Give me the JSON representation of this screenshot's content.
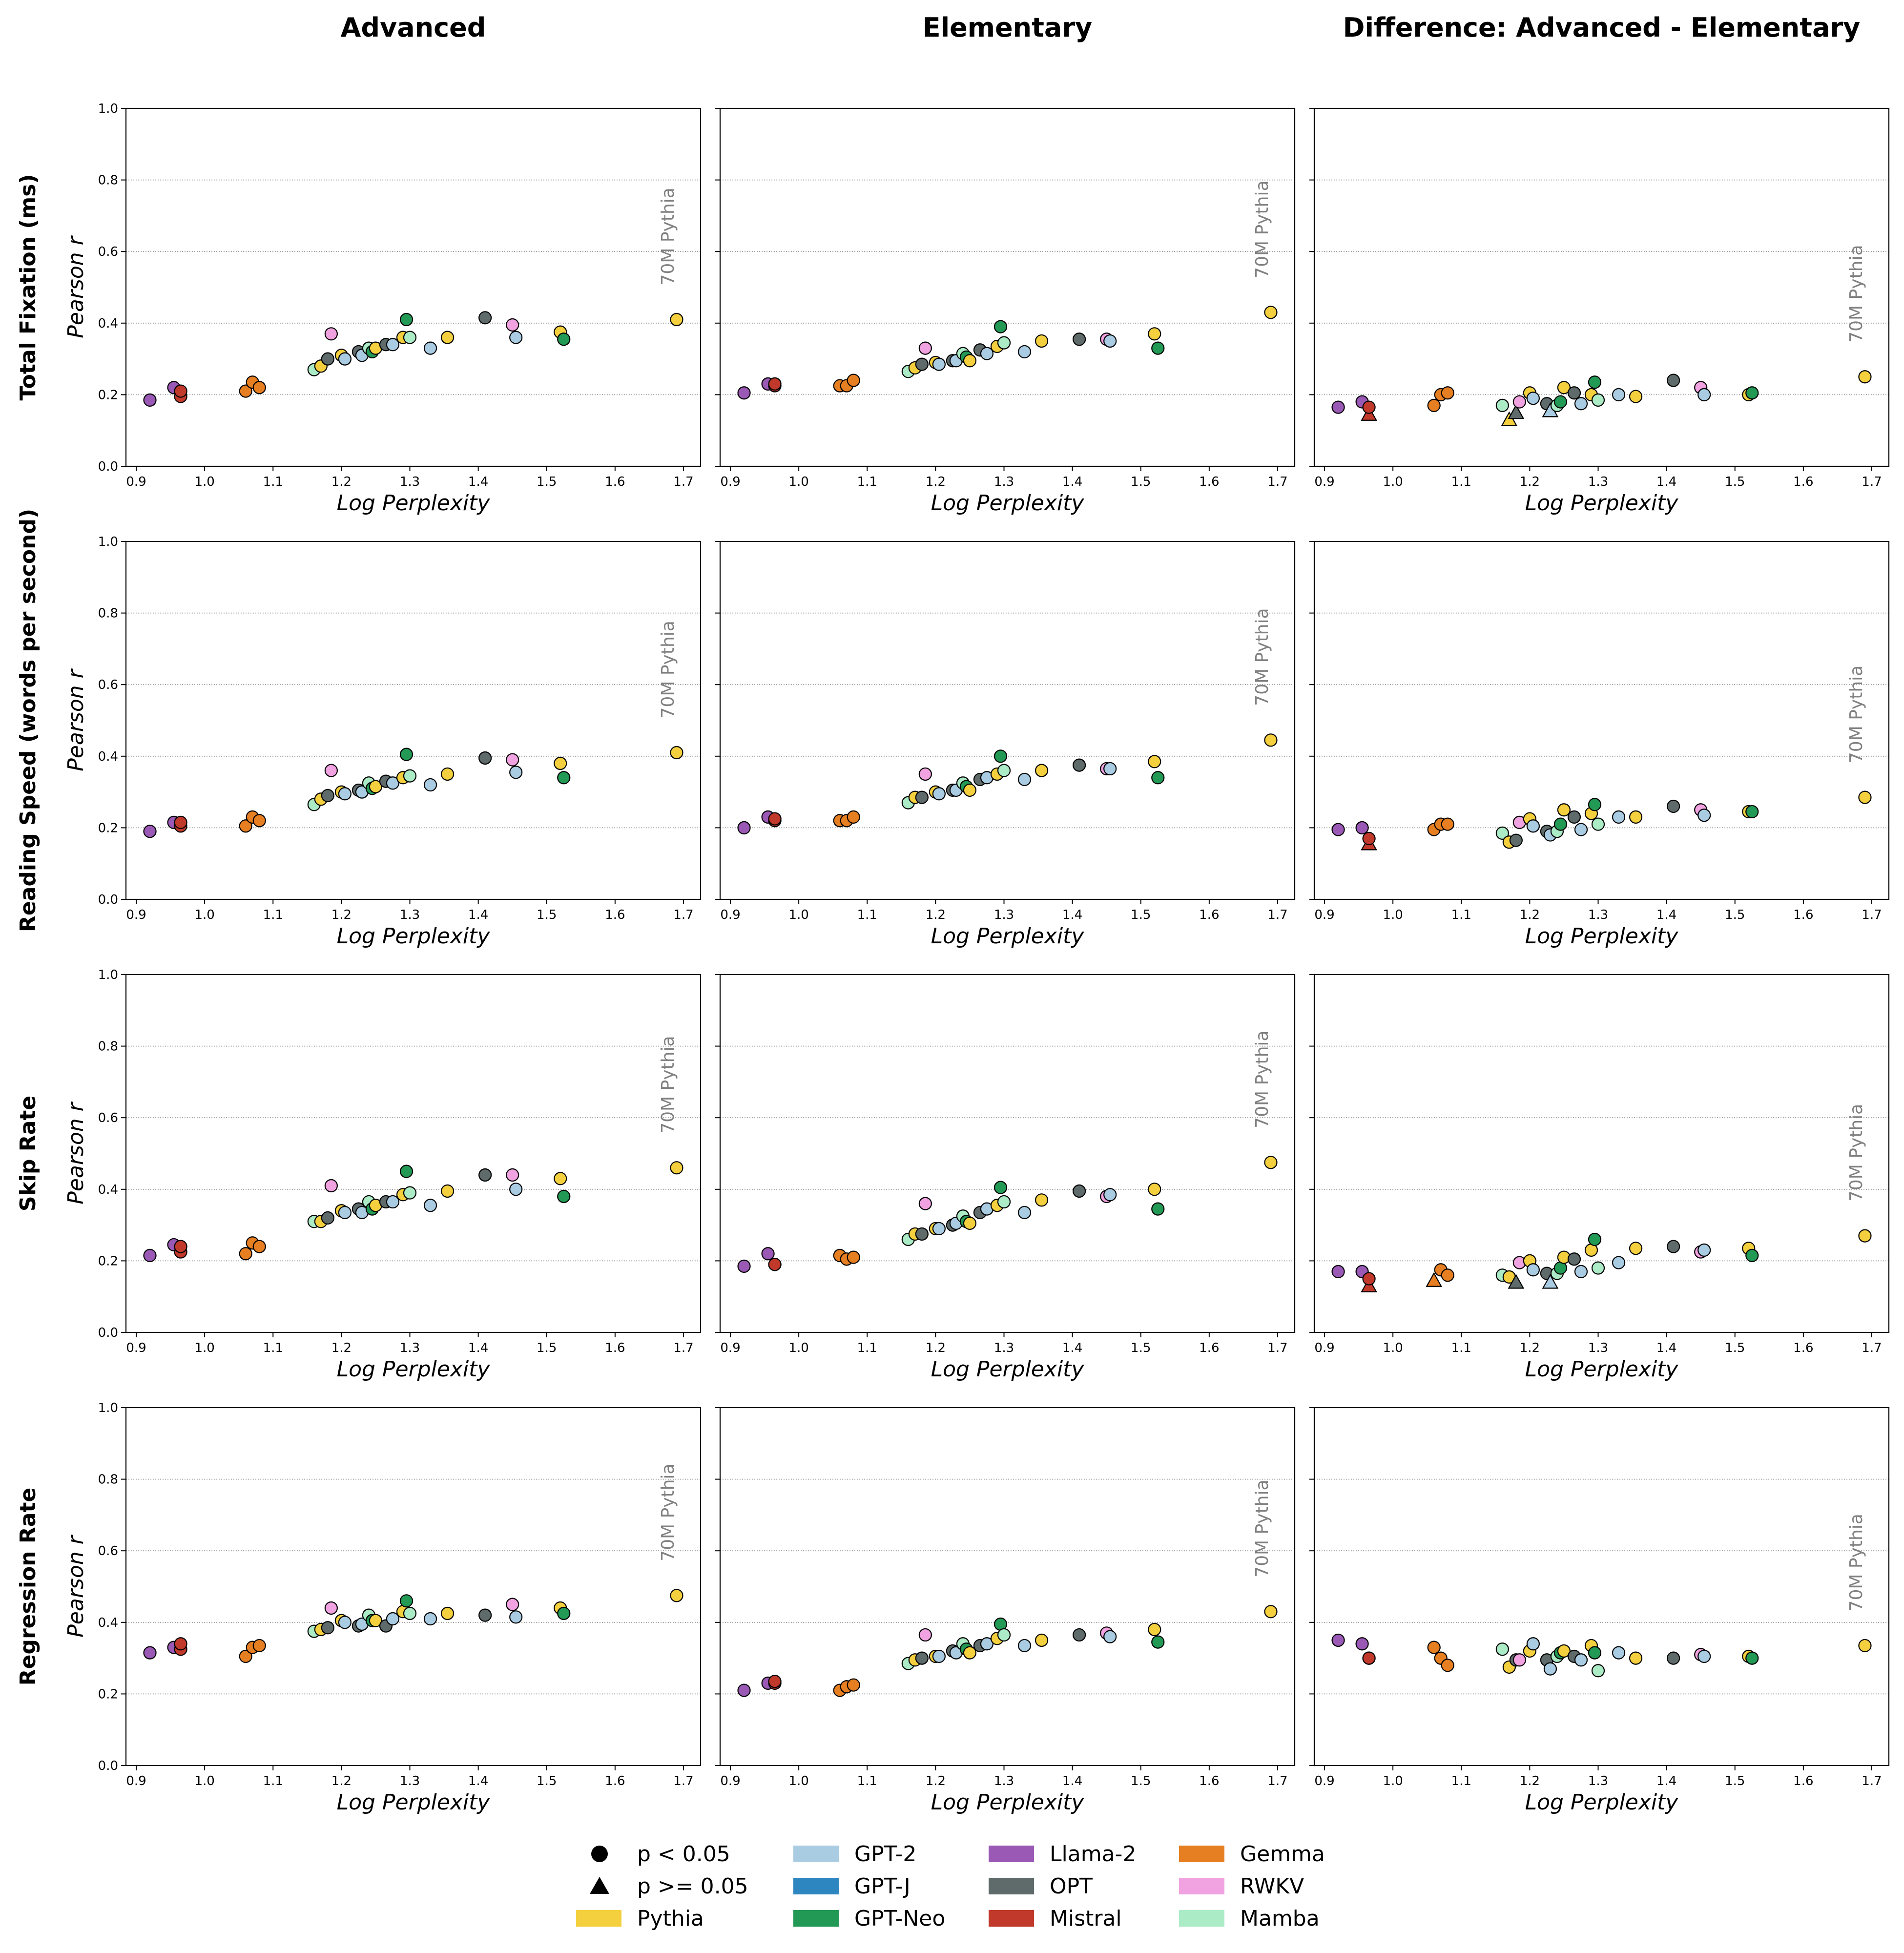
{
  "figure": {
    "column_titles": [
      "Advanced",
      "Elementary",
      "Difference: Advanced - Elementary"
    ],
    "row_titles": [
      "Total Fixation (ms)",
      "Reading Speed (words per second)",
      "Skip Rate",
      "Regression Rate"
    ],
    "xlabel": "Log Perplexity",
    "ylabel": "Pearson r",
    "annotation": "70M Pythia",
    "xticks": [
      "0.9",
      "1.0",
      "1.1",
      "1.2",
      "1.3",
      "1.4",
      "1.5",
      "1.6",
      "1.7"
    ],
    "yticks": [
      "0.0",
      "0.2",
      "0.4",
      "0.6",
      "0.8",
      "1.0"
    ]
  },
  "legend": {
    "markers": [
      {
        "label": "p < 0.05",
        "shape": "circle"
      },
      {
        "label": "p >= 0.05",
        "shape": "triangle"
      }
    ],
    "families": [
      {
        "label": "Pythia",
        "color": "#f4d03f"
      },
      {
        "label": "GPT-2",
        "color": "#a9cce3"
      },
      {
        "label": "GPT-J",
        "color": "#2e86c1"
      },
      {
        "label": "GPT-Neo",
        "color": "#229954"
      },
      {
        "label": "Llama-2",
        "color": "#9b59b6"
      },
      {
        "label": "OPT",
        "color": "#5f6a6a"
      },
      {
        "label": "Mistral",
        "color": "#c0392b"
      },
      {
        "label": "Gemma",
        "color": "#e67e22"
      },
      {
        "label": "RWKV",
        "color": "#f1a2e0"
      },
      {
        "label": "Mamba",
        "color": "#abebc6"
      }
    ]
  },
  "chart_data": {
    "type": "scatter",
    "xlim": [
      0.885,
      1.725
    ],
    "ylim": [
      0.0,
      1.0
    ],
    "grid": "horizontal dotted",
    "legend_placement": "bottom",
    "x": [
      0.92,
      0.955,
      0.965,
      0.965,
      1.06,
      1.07,
      1.08,
      1.16,
      1.17,
      1.18,
      1.185,
      1.2,
      1.205,
      1.225,
      1.23,
      1.24,
      1.245,
      1.25,
      1.265,
      1.275,
      1.29,
      1.295,
      1.3,
      1.33,
      1.355,
      1.41,
      1.45,
      1.455,
      1.52,
      1.525,
      1.69
    ],
    "families": [
      "Llama-2",
      "Llama-2",
      "Mistral",
      "Mistral",
      "Gemma",
      "Gemma",
      "Gemma",
      "Mamba",
      "Pythia",
      "OPT",
      "RWKV",
      "Pythia",
      "GPT-2",
      "OPT",
      "GPT-2",
      "Mamba",
      "GPT-Neo",
      "Pythia",
      "OPT",
      "GPT-2",
      "Pythia",
      "GPT-Neo",
      "Mamba",
      "GPT-2",
      "Pythia",
      "OPT",
      "RWKV",
      "GPT-2",
      "Pythia",
      "GPT-Neo",
      "Pythia"
    ],
    "panels": [
      {
        "row": "Total Fixation (ms)",
        "column": "Advanced",
        "y": [
          0.185,
          0.22,
          0.195,
          0.21,
          0.21,
          0.235,
          0.22,
          0.27,
          0.28,
          0.3,
          0.37,
          0.31,
          0.3,
          0.32,
          0.31,
          0.33,
          0.32,
          0.33,
          0.34,
          0.34,
          0.36,
          0.41,
          0.36,
          0.33,
          0.36,
          0.415,
          0.395,
          0.36,
          0.375,
          0.355,
          0.41
        ],
        "significant": [
          true,
          true,
          true,
          true,
          true,
          true,
          true,
          true,
          true,
          true,
          true,
          true,
          true,
          true,
          true,
          true,
          true,
          true,
          true,
          true,
          true,
          true,
          true,
          true,
          true,
          true,
          true,
          true,
          true,
          true,
          true
        ]
      },
      {
        "row": "Total Fixation (ms)",
        "column": "Elementary",
        "y": [
          0.205,
          0.23,
          0.225,
          0.23,
          0.225,
          0.225,
          0.24,
          0.265,
          0.275,
          0.285,
          0.33,
          0.29,
          0.285,
          0.295,
          0.295,
          0.315,
          0.305,
          0.295,
          0.325,
          0.315,
          0.335,
          0.39,
          0.345,
          0.32,
          0.35,
          0.355,
          0.355,
          0.35,
          0.37,
          0.33,
          0.43
        ],
        "significant": [
          true,
          true,
          true,
          true,
          true,
          true,
          true,
          true,
          true,
          true,
          true,
          true,
          true,
          true,
          true,
          true,
          true,
          true,
          true,
          true,
          true,
          true,
          true,
          true,
          true,
          true,
          true,
          true,
          true,
          true,
          true
        ]
      },
      {
        "row": "Total Fixation (ms)",
        "column": "Difference: Advanced - Elementary",
        "y": [
          0.165,
          0.18,
          0.145,
          0.165,
          0.17,
          0.2,
          0.205,
          0.17,
          0.13,
          0.15,
          0.18,
          0.205,
          0.19,
          0.175,
          0.155,
          0.17,
          0.18,
          0.22,
          0.205,
          0.175,
          0.2,
          0.235,
          0.185,
          0.2,
          0.195,
          0.24,
          0.22,
          0.2,
          0.2,
          0.205,
          0.25
        ],
        "significant": [
          true,
          true,
          false,
          true,
          true,
          true,
          true,
          true,
          false,
          false,
          true,
          true,
          true,
          true,
          false,
          true,
          true,
          true,
          true,
          true,
          true,
          true,
          true,
          true,
          true,
          true,
          true,
          true,
          true,
          true,
          true
        ]
      },
      {
        "row": "Reading Speed (words per second)",
        "column": "Advanced",
        "y": [
          0.19,
          0.215,
          0.205,
          0.215,
          0.205,
          0.23,
          0.22,
          0.265,
          0.28,
          0.29,
          0.36,
          0.3,
          0.295,
          0.305,
          0.3,
          0.325,
          0.31,
          0.315,
          0.33,
          0.325,
          0.34,
          0.405,
          0.345,
          0.32,
          0.35,
          0.395,
          0.39,
          0.355,
          0.38,
          0.34,
          0.41
        ],
        "significant": [
          true,
          true,
          true,
          true,
          true,
          true,
          true,
          true,
          true,
          true,
          true,
          true,
          true,
          true,
          true,
          true,
          true,
          true,
          true,
          true,
          true,
          true,
          true,
          true,
          true,
          true,
          true,
          true,
          true,
          true,
          true
        ]
      },
      {
        "row": "Reading Speed (words per second)",
        "column": "Elementary",
        "y": [
          0.2,
          0.23,
          0.22,
          0.225,
          0.22,
          0.22,
          0.23,
          0.27,
          0.285,
          0.285,
          0.35,
          0.3,
          0.295,
          0.305,
          0.305,
          0.325,
          0.315,
          0.305,
          0.335,
          0.34,
          0.35,
          0.4,
          0.36,
          0.335,
          0.36,
          0.375,
          0.365,
          0.365,
          0.385,
          0.34,
          0.445
        ],
        "significant": [
          true,
          true,
          true,
          true,
          true,
          true,
          true,
          true,
          true,
          true,
          true,
          true,
          true,
          true,
          true,
          true,
          true,
          true,
          true,
          true,
          true,
          true,
          true,
          true,
          true,
          true,
          true,
          true,
          true,
          true,
          true
        ]
      },
      {
        "row": "Reading Speed (words per second)",
        "column": "Difference: Advanced - Elementary",
        "y": [
          0.195,
          0.2,
          0.155,
          0.17,
          0.195,
          0.21,
          0.21,
          0.185,
          0.16,
          0.165,
          0.215,
          0.225,
          0.205,
          0.19,
          0.18,
          0.19,
          0.21,
          0.25,
          0.23,
          0.195,
          0.24,
          0.265,
          0.21,
          0.23,
          0.23,
          0.26,
          0.25,
          0.235,
          0.245,
          0.245,
          0.285
        ],
        "significant": [
          true,
          true,
          false,
          true,
          true,
          true,
          true,
          true,
          true,
          true,
          true,
          true,
          true,
          true,
          true,
          true,
          true,
          true,
          true,
          true,
          true,
          true,
          true,
          true,
          true,
          true,
          true,
          true,
          true,
          true,
          true
        ]
      },
      {
        "row": "Skip Rate",
        "column": "Advanced",
        "y": [
          0.215,
          0.245,
          0.225,
          0.24,
          0.22,
          0.25,
          0.24,
          0.31,
          0.31,
          0.32,
          0.41,
          0.34,
          0.335,
          0.345,
          0.335,
          0.365,
          0.345,
          0.355,
          0.365,
          0.365,
          0.385,
          0.45,
          0.39,
          0.355,
          0.395,
          0.44,
          0.44,
          0.4,
          0.43,
          0.38,
          0.46
        ],
        "significant": [
          true,
          true,
          true,
          true,
          true,
          true,
          true,
          true,
          true,
          true,
          true,
          true,
          true,
          true,
          true,
          true,
          true,
          true,
          true,
          true,
          true,
          true,
          true,
          true,
          true,
          true,
          true,
          true,
          true,
          true,
          true
        ]
      },
      {
        "row": "Skip Rate",
        "column": "Elementary",
        "y": [
          0.185,
          0.22,
          0.19,
          0.19,
          0.215,
          0.205,
          0.21,
          0.26,
          0.275,
          0.275,
          0.36,
          0.29,
          0.29,
          0.3,
          0.305,
          0.325,
          0.31,
          0.305,
          0.335,
          0.345,
          0.355,
          0.405,
          0.365,
          0.335,
          0.37,
          0.395,
          0.38,
          0.385,
          0.4,
          0.345,
          0.475
        ],
        "significant": [
          true,
          true,
          true,
          true,
          true,
          true,
          true,
          true,
          true,
          true,
          true,
          true,
          true,
          true,
          true,
          true,
          true,
          true,
          true,
          true,
          true,
          true,
          true,
          true,
          true,
          true,
          true,
          true,
          true,
          true,
          true
        ]
      },
      {
        "row": "Skip Rate",
        "column": "Difference: Advanced - Elementary",
        "y": [
          0.17,
          0.17,
          0.13,
          0.15,
          0.145,
          0.175,
          0.16,
          0.16,
          0.155,
          0.14,
          0.195,
          0.2,
          0.175,
          0.165,
          0.14,
          0.165,
          0.18,
          0.21,
          0.205,
          0.17,
          0.23,
          0.26,
          0.18,
          0.195,
          0.235,
          0.24,
          0.225,
          0.23,
          0.235,
          0.215,
          0.27
        ],
        "significant": [
          true,
          true,
          false,
          true,
          false,
          true,
          true,
          true,
          true,
          false,
          true,
          true,
          true,
          true,
          false,
          true,
          true,
          true,
          true,
          true,
          true,
          true,
          true,
          true,
          true,
          true,
          true,
          true,
          true,
          true,
          true
        ]
      },
      {
        "row": "Regression Rate",
        "column": "Advanced",
        "y": [
          0.315,
          0.33,
          0.325,
          0.34,
          0.305,
          0.33,
          0.335,
          0.375,
          0.38,
          0.385,
          0.44,
          0.405,
          0.4,
          0.39,
          0.395,
          0.42,
          0.405,
          0.405,
          0.39,
          0.41,
          0.43,
          0.46,
          0.425,
          0.41,
          0.425,
          0.42,
          0.45,
          0.415,
          0.44,
          0.425,
          0.475
        ],
        "significant": [
          true,
          true,
          true,
          true,
          true,
          true,
          true,
          true,
          true,
          true,
          true,
          true,
          true,
          true,
          true,
          true,
          true,
          true,
          true,
          true,
          true,
          true,
          true,
          true,
          true,
          true,
          true,
          true,
          true,
          true,
          true
        ]
      },
      {
        "row": "Regression Rate",
        "column": "Elementary",
        "y": [
          0.21,
          0.23,
          0.23,
          0.235,
          0.21,
          0.22,
          0.225,
          0.285,
          0.295,
          0.3,
          0.365,
          0.305,
          0.305,
          0.32,
          0.315,
          0.34,
          0.325,
          0.315,
          0.335,
          0.34,
          0.355,
          0.395,
          0.365,
          0.335,
          0.35,
          0.365,
          0.37,
          0.36,
          0.38,
          0.345,
          0.43
        ],
        "significant": [
          true,
          true,
          true,
          true,
          true,
          true,
          true,
          true,
          true,
          true,
          true,
          true,
          true,
          true,
          true,
          true,
          true,
          true,
          true,
          true,
          true,
          true,
          true,
          true,
          true,
          true,
          true,
          true,
          true,
          true,
          true
        ]
      },
      {
        "row": "Regression Rate",
        "column": "Difference: Advanced - Elementary",
        "y": [
          0.35,
          0.34,
          0.3,
          0.3,
          0.33,
          0.3,
          0.28,
          0.325,
          0.275,
          0.295,
          0.295,
          0.32,
          0.34,
          0.295,
          0.27,
          0.305,
          0.315,
          0.32,
          0.305,
          0.295,
          0.335,
          0.315,
          0.265,
          0.315,
          0.3,
          0.3,
          0.31,
          0.305,
          0.305,
          0.3,
          0.335
        ],
        "significant": [
          true,
          true,
          true,
          true,
          true,
          true,
          true,
          true,
          true,
          true,
          true,
          true,
          true,
          true,
          true,
          true,
          true,
          true,
          true,
          true,
          true,
          true,
          true,
          true,
          true,
          true,
          true,
          true,
          true,
          true,
          true
        ]
      }
    ]
  }
}
